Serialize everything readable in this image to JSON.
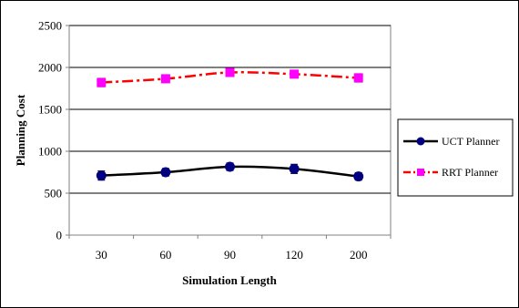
{
  "chart_data": {
    "type": "line",
    "categories": [
      "30",
      "60",
      "90",
      "120",
      "200"
    ],
    "xlabel": "Simulation Length",
    "ylabel": "Planning Cost",
    "ylim": [
      0,
      2500
    ],
    "yticks": [
      "0",
      "500",
      "1000",
      "1500",
      "2000",
      "2500"
    ],
    "grid": "horizontal",
    "legend_position": "right",
    "error_bars": true,
    "series": [
      {
        "name": "UCT Planner",
        "values": [
          710,
          750,
          815,
          790,
          700
        ],
        "errors": [
          55,
          45,
          45,
          55,
          45
        ],
        "color": "#000000",
        "marker_color": "#000080",
        "marker": "circle",
        "line_style": "solid"
      },
      {
        "name": "RRT Planner",
        "values": [
          1820,
          1865,
          1940,
          1920,
          1875
        ],
        "errors": [
          50,
          35,
          35,
          40,
          50
        ],
        "color": "#ff0000",
        "marker_color": "#ff00ff",
        "marker": "square",
        "line_style": "dashdot"
      }
    ]
  }
}
